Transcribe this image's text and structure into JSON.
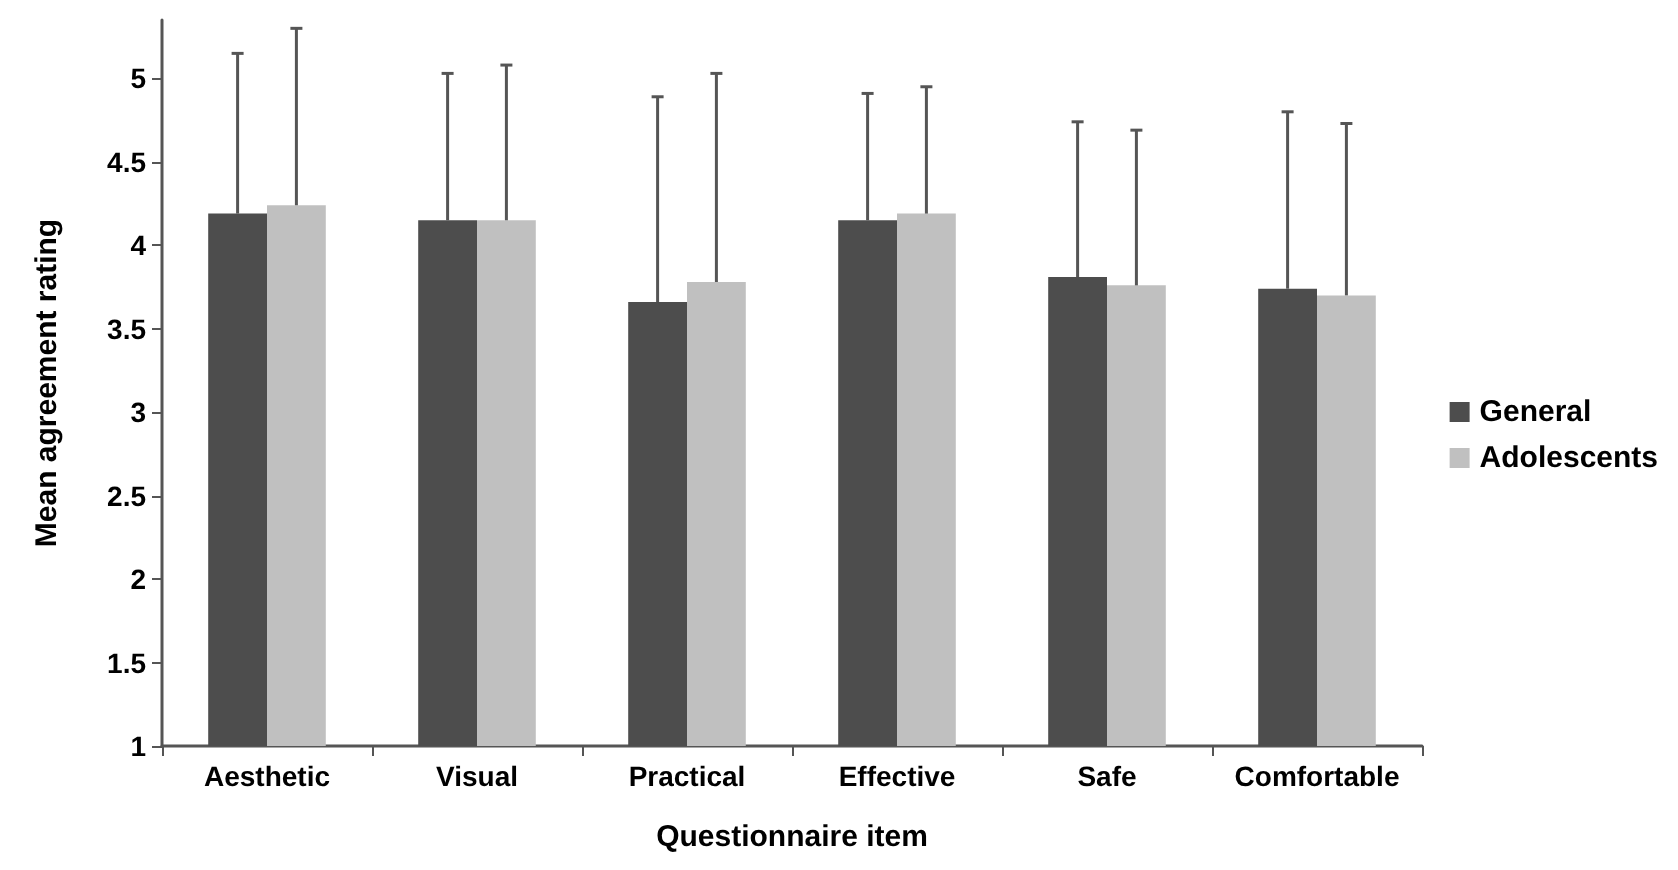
{
  "chart_data": {
    "type": "bar",
    "xlabel": "Questionnaire item",
    "ylabel": "Mean agreement rating",
    "categories": [
      "Aesthetic",
      "Visual",
      "Practical",
      "Effective",
      "Safe",
      "Comfortable"
    ],
    "series": [
      {
        "name": "General",
        "color": "#4d4d4d",
        "values": [
          4.19,
          4.15,
          3.66,
          4.15,
          3.81,
          3.74
        ],
        "errors": [
          [
            4.19,
            5.15
          ],
          [
            4.15,
            5.03
          ],
          [
            3.66,
            4.89
          ],
          [
            4.15,
            4.91
          ],
          [
            3.81,
            4.74
          ],
          [
            3.74,
            4.8
          ]
        ]
      },
      {
        "name": "Adolescents",
        "color": "#c0c0c0",
        "values": [
          4.24,
          4.15,
          3.78,
          4.19,
          3.76,
          3.7
        ],
        "errors": [
          [
            4.24,
            5.3
          ],
          [
            4.15,
            5.08
          ],
          [
            3.78,
            5.03
          ],
          [
            4.19,
            4.95
          ],
          [
            3.76,
            4.69
          ],
          [
            3.7,
            4.73
          ]
        ]
      }
    ],
    "ylim": [
      1,
      5.35
    ],
    "yticks": [
      1,
      1.5,
      2,
      2.5,
      3,
      3.5,
      4,
      4.5,
      5
    ],
    "grid": false,
    "legend": "right"
  }
}
